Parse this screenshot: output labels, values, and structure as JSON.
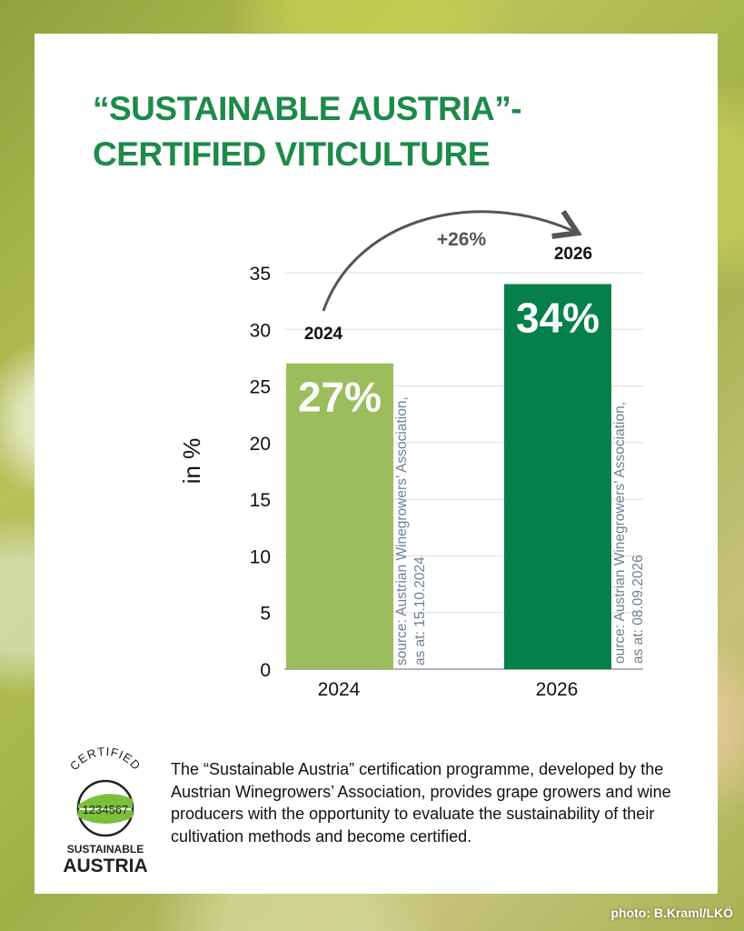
{
  "title": {
    "line1": "“SUSTAINABLE AUSTRIA”-",
    "line2": "CERTIFIED VITICULTURE"
  },
  "chart_data": {
    "type": "bar",
    "categories": [
      "2024",
      "2026"
    ],
    "values": [
      27,
      34
    ],
    "value_labels": [
      "27%",
      "34%"
    ],
    "bar_year_labels": [
      "2024",
      "2026"
    ],
    "bar_colors": [
      "#9bbd5c",
      "#05804a"
    ],
    "ylabel": "in %",
    "ylim": [
      0,
      35
    ],
    "yticks": [
      0,
      5,
      10,
      15,
      20,
      25,
      30,
      35
    ],
    "grid": true,
    "annotation": {
      "text": "+26%",
      "from": "2024",
      "to": "2026"
    },
    "sources": [
      {
        "line1": "source: Austrian Winegrowers’ Association,",
        "line2": "as at: 15.10.2024"
      },
      {
        "line1": "ource: Austrian Winegrowers’ Association,",
        "line2": "as at: 08.09.2026"
      }
    ]
  },
  "footer": {
    "text": "The “Sustainable Austria” certification programme, developed by the Austrian Winegrowers’ Association, provides grape growers and wine producers with the opportunity to evaluate the sustainability of their cultivation methods and become certified."
  },
  "logo": {
    "certified": "CERTIFIED",
    "number": "1234567",
    "line1": "SUSTAINABLE",
    "line2": "AUSTRIA"
  },
  "photo_credit": "photo: B.Kraml/LKÖ"
}
